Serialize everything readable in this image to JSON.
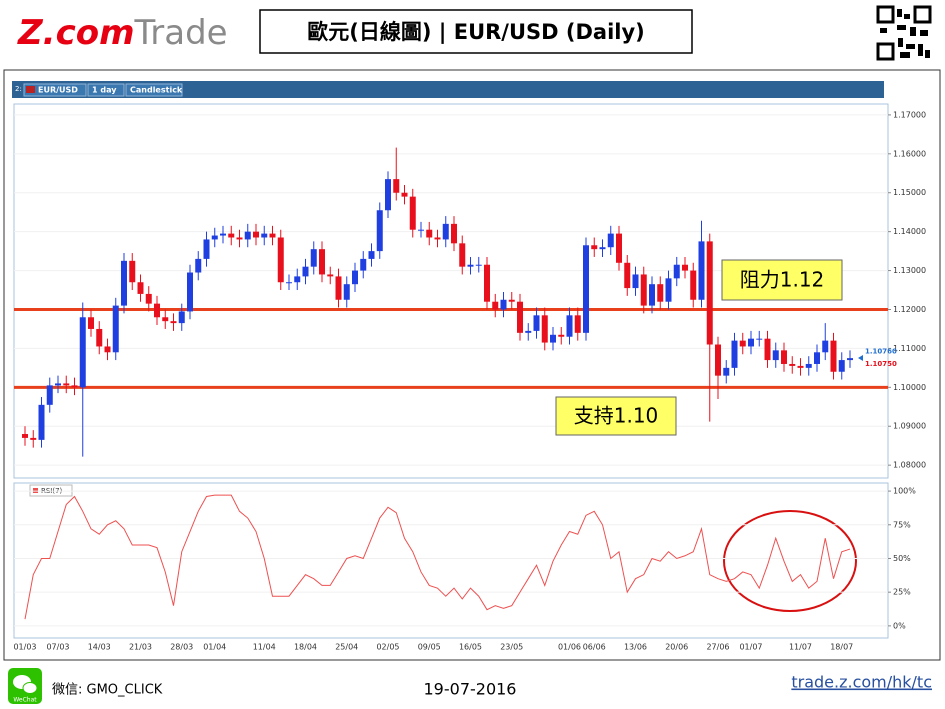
{
  "header": {
    "logo_brand": "Z.com",
    "logo_product": "Trade",
    "title": "歐元(日線圖) | EUR/USD (Daily)"
  },
  "toolbar": {
    "index": "2:",
    "symbol": "EUR/USD",
    "timeframe": "1 day",
    "chart_style": "Candlestick"
  },
  "chart_data": [
    {
      "type": "candlestick",
      "categories": [
        "01/03",
        null,
        null,
        null,
        "07/03",
        null,
        null,
        null,
        null,
        "14/03",
        null,
        null,
        null,
        null,
        "21/03",
        null,
        null,
        null,
        null,
        "28/03",
        null,
        null,
        null,
        "01/04",
        null,
        null,
        null,
        null,
        null,
        "11/04",
        null,
        null,
        null,
        null,
        "18/04",
        null,
        null,
        null,
        null,
        "25/04",
        null,
        null,
        null,
        null,
        "02/05",
        null,
        null,
        null,
        null,
        "09/05",
        null,
        null,
        null,
        null,
        "16/05",
        null,
        null,
        null,
        null,
        "23/05",
        null,
        null,
        null,
        null,
        null,
        null,
        "01/06",
        null,
        null,
        "06/06",
        null,
        null,
        null,
        null,
        "13/06",
        null,
        null,
        null,
        null,
        "20/06",
        null,
        null,
        null,
        null,
        "27/06",
        null,
        null,
        null,
        "01/07",
        null,
        null,
        null,
        null,
        null,
        "11/07",
        null,
        null,
        null,
        null,
        "18/07",
        null
      ],
      "open": [
        1.088,
        1.087,
        1.0865,
        1.0955,
        1.1005,
        1.101,
        1.1005,
        1.1,
        1.118,
        1.115,
        1.1105,
        1.109,
        1.121,
        1.1325,
        1.127,
        1.124,
        1.1215,
        1.118,
        1.117,
        1.1165,
        1.1195,
        1.1295,
        1.133,
        1.138,
        1.139,
        1.1395,
        1.1385,
        1.138,
        1.14,
        1.1385,
        1.1395,
        1.1385,
        1.127,
        1.127,
        1.1285,
        1.131,
        1.1355,
        1.129,
        1.1285,
        1.1225,
        1.1265,
        1.13,
        1.133,
        1.135,
        1.1455,
        1.1535,
        1.15,
        1.149,
        1.1405,
        1.1405,
        1.1385,
        1.138,
        1.142,
        1.137,
        1.131,
        1.1315,
        1.1315,
        1.122,
        1.12,
        1.1225,
        1.122,
        1.114,
        1.1145,
        1.1185,
        1.1115,
        1.1135,
        1.113,
        1.1185,
        1.114,
        1.1365,
        1.1355,
        1.136,
        1.1395,
        1.132,
        1.1255,
        1.129,
        1.121,
        1.1265,
        1.122,
        1.128,
        1.1315,
        1.13,
        1.1225,
        1.1375,
        1.111,
        1.103,
        1.105,
        1.112,
        1.1105,
        1.1125,
        1.1125,
        1.107,
        1.1095,
        1.106,
        1.1055,
        1.105,
        1.106,
        1.109,
        1.112,
        1.104,
        1.107
      ],
      "high": [
        1.09,
        1.089,
        1.0975,
        1.1025,
        1.103,
        1.103,
        1.1025,
        1.1218,
        1.12,
        1.117,
        1.1125,
        1.123,
        1.1345,
        1.1345,
        1.129,
        1.126,
        1.1235,
        1.12,
        1.119,
        1.1215,
        1.1315,
        1.135,
        1.14,
        1.141,
        1.1415,
        1.1415,
        1.1405,
        1.142,
        1.142,
        1.1415,
        1.1415,
        1.1405,
        1.129,
        1.1305,
        1.133,
        1.1375,
        1.1375,
        1.131,
        1.1305,
        1.1285,
        1.132,
        1.135,
        1.137,
        1.1475,
        1.1555,
        1.1616,
        1.152,
        1.151,
        1.1425,
        1.1425,
        1.1405,
        1.144,
        1.144,
        1.139,
        1.1335,
        1.1335,
        1.1335,
        1.124,
        1.1245,
        1.1245,
        1.124,
        1.1165,
        1.1205,
        1.1205,
        1.1155,
        1.1155,
        1.1205,
        1.1205,
        1.1385,
        1.1385,
        1.138,
        1.1415,
        1.1415,
        1.134,
        1.131,
        1.131,
        1.1285,
        1.1285,
        1.13,
        1.1335,
        1.1335,
        1.132,
        1.1428,
        1.1395,
        1.113,
        1.107,
        1.114,
        1.114,
        1.1145,
        1.1145,
        1.1145,
        1.1115,
        1.1115,
        1.108,
        1.1075,
        1.108,
        1.111,
        1.1165,
        1.114,
        1.109,
        1.1095
      ],
      "low": [
        1.085,
        1.0845,
        1.0845,
        1.0935,
        1.0985,
        1.0985,
        1.098,
        1.0822,
        1.113,
        1.1085,
        1.107,
        1.107,
        1.119,
        1.125,
        1.122,
        1.1195,
        1.116,
        1.115,
        1.1145,
        1.1145,
        1.1175,
        1.1275,
        1.131,
        1.136,
        1.137,
        1.1365,
        1.136,
        1.136,
        1.1365,
        1.1365,
        1.1365,
        1.125,
        1.125,
        1.125,
        1.1265,
        1.129,
        1.127,
        1.1265,
        1.1205,
        1.1205,
        1.1245,
        1.128,
        1.131,
        1.133,
        1.1435,
        1.148,
        1.147,
        1.1385,
        1.1385,
        1.1365,
        1.136,
        1.136,
        1.135,
        1.129,
        1.129,
        1.1295,
        1.12,
        1.118,
        1.118,
        1.12,
        1.112,
        1.112,
        1.1125,
        1.1095,
        1.1095,
        1.111,
        1.111,
        1.112,
        1.112,
        1.1335,
        1.1335,
        1.134,
        1.13,
        1.1235,
        1.1235,
        1.119,
        1.119,
        1.12,
        1.12,
        1.126,
        1.128,
        1.1205,
        1.1205,
        1.0912,
        1.097,
        1.101,
        1.103,
        1.1085,
        1.1085,
        1.1105,
        1.105,
        1.105,
        1.104,
        1.1035,
        1.103,
        1.103,
        1.104,
        1.107,
        1.102,
        1.102,
        1.105
      ],
      "close": [
        1.087,
        1.0865,
        1.0955,
        1.1005,
        1.101,
        1.1005,
        1.1,
        1.118,
        1.115,
        1.1105,
        1.109,
        1.121,
        1.1325,
        1.127,
        1.124,
        1.1215,
        1.118,
        1.117,
        1.1165,
        1.1195,
        1.1295,
        1.133,
        1.138,
        1.139,
        1.1395,
        1.1385,
        1.138,
        1.14,
        1.1385,
        1.1395,
        1.1385,
        1.127,
        1.127,
        1.1285,
        1.131,
        1.1355,
        1.129,
        1.1285,
        1.1225,
        1.1265,
        1.13,
        1.133,
        1.135,
        1.1455,
        1.1535,
        1.15,
        1.149,
        1.1405,
        1.1405,
        1.1385,
        1.138,
        1.142,
        1.137,
        1.131,
        1.1315,
        1.1315,
        1.122,
        1.12,
        1.1225,
        1.122,
        1.114,
        1.1145,
        1.1185,
        1.1115,
        1.1135,
        1.113,
        1.1185,
        1.114,
        1.1365,
        1.1355,
        1.136,
        1.1395,
        1.132,
        1.1255,
        1.129,
        1.121,
        1.1265,
        1.122,
        1.128,
        1.1315,
        1.13,
        1.1225,
        1.1375,
        1.111,
        1.103,
        1.105,
        1.112,
        1.1105,
        1.1125,
        1.1125,
        1.107,
        1.1095,
        1.106,
        1.1055,
        1.105,
        1.106,
        1.109,
        1.112,
        1.104,
        1.107,
        1.1075
      ],
      "up_color": "#1f3fe0",
      "down_color": "#e8101c",
      "ylim": [
        1.0767,
        1.1728
      ],
      "yticks": [
        {
          "value": 1.08,
          "label": "1.08000"
        },
        {
          "value": 1.09,
          "label": "1.09000"
        },
        {
          "value": 1.1,
          "label": "1.10000"
        },
        {
          "value": 1.11,
          "label": "1.11000"
        },
        {
          "value": 1.12,
          "label": "1.12000"
        },
        {
          "value": 1.13,
          "label": "1.13000"
        },
        {
          "value": 1.14,
          "label": "1.14000"
        },
        {
          "value": 1.15,
          "label": "1.15000"
        },
        {
          "value": 1.16,
          "label": "1.16000"
        },
        {
          "value": 1.17,
          "label": "1.17000"
        }
      ],
      "hlines": [
        {
          "value": 1.12,
          "label": "阻力1.12",
          "color": "#e8401c"
        },
        {
          "value": 1.1,
          "label": "支持1.10",
          "color": "#e8401c"
        }
      ],
      "price_labels": [
        {
          "value": 1.1076,
          "label": "1.10760",
          "color": "#1f6fd0"
        },
        {
          "value": 1.1075,
          "label": "1.10750",
          "color": "#e8101c"
        }
      ]
    },
    {
      "type": "line",
      "name": "RSI(7)",
      "color": "#ee5050",
      "values": [
        5,
        38,
        50,
        50,
        70,
        90,
        96,
        85,
        72,
        68,
        75,
        78,
        72,
        60,
        60,
        60,
        58,
        40,
        15,
        55,
        70,
        85,
        96,
        97,
        97,
        97,
        85,
        80,
        70,
        50,
        22,
        22,
        22,
        30,
        38,
        35,
        30,
        30,
        40,
        50,
        52,
        50,
        65,
        80,
        88,
        84,
        65,
        55,
        40,
        30,
        28,
        22,
        28,
        20,
        28,
        22,
        12,
        15,
        13,
        15,
        25,
        35,
        45,
        30,
        48,
        60,
        70,
        68,
        82,
        85,
        75,
        50,
        55,
        25,
        35,
        38,
        50,
        48,
        55,
        50,
        52,
        55,
        72,
        38,
        35,
        33,
        35,
        40,
        38,
        28,
        45,
        65,
        48,
        33,
        38,
        28,
        33,
        65,
        35,
        55,
        57
      ],
      "ylim": [
        -9,
        106
      ],
      "yticks": [
        {
          "value": 100,
          "label": "100%"
        },
        {
          "value": 75,
          "label": "75%"
        },
        {
          "value": 50,
          "label": "50%"
        },
        {
          "value": 25,
          "label": "25%"
        },
        {
          "value": 0,
          "label": "0%"
        }
      ]
    }
  ],
  "footer": {
    "wechat_icon": "WeChat",
    "wechat_id": "微信: GMO_CLICK",
    "date": "19-07-2016",
    "link": "trade.z.com/hk/tc"
  }
}
